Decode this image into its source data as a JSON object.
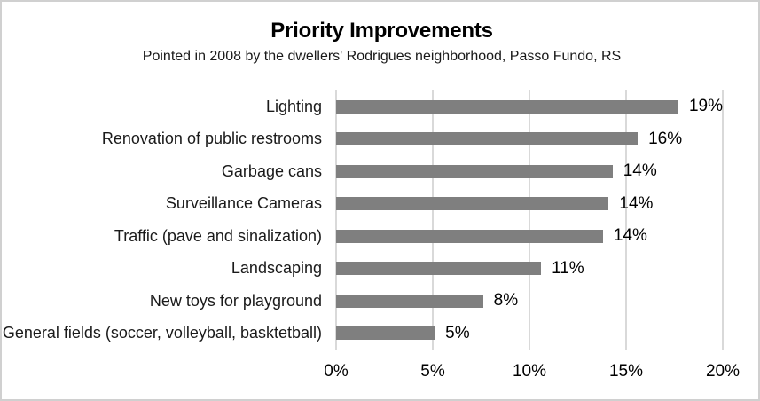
{
  "frame": {
    "background": "#ffffff",
    "border_color": "#d0d0d0"
  },
  "chart_data": {
    "type": "bar",
    "orientation": "horizontal",
    "title": "Priority Improvements",
    "subtitle": "Pointed in 2008 by the dwellers' Rodrigues neighborhood, Passo Fundo, RS",
    "categories": [
      "Lighting",
      "Renovation of public restrooms",
      "Garbage cans",
      "Surveillance Cameras",
      "Traffic (pave and sinalization)",
      "Landscaping",
      "New toys for playground",
      "General fields (soccer, volleyball, basktetball)"
    ],
    "values": [
      19,
      16,
      14,
      14,
      14,
      11,
      8,
      5
    ],
    "value_labels": [
      "19%",
      "16%",
      "14%",
      "14%",
      "14%",
      "11%",
      "8%",
      "5%"
    ],
    "bar_lengths_pct": [
      19.0,
      15.6,
      14.3,
      14.1,
      13.8,
      10.6,
      7.6,
      5.1
    ],
    "x_ticks": [
      "0%",
      "5%",
      "10%",
      "15%",
      "20%"
    ],
    "x_tick_values": [
      0,
      5,
      10,
      15,
      20
    ],
    "xlim": [
      0,
      20
    ],
    "xlabel": "",
    "ylabel": "",
    "bar_color": "#7f7f7f",
    "gridline_color": "#d9d9d9",
    "grid": "vertical-only",
    "legend": "none",
    "value_labels_position": "outside-end"
  }
}
